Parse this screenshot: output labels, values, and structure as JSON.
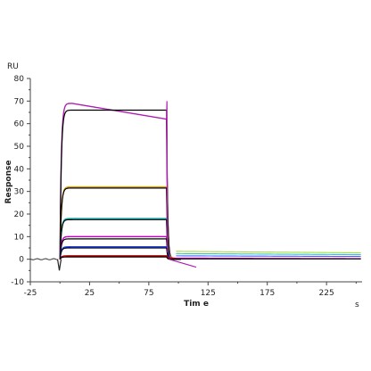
{
  "chart_data": {
    "type": "line",
    "title": "",
    "xlabel": "Tim e",
    "ylabel": "Response",
    "y_unit": "RU",
    "x_unit": "s",
    "xlim": [
      -25,
      255
    ],
    "ylim": [
      -10,
      80
    ],
    "x_ticks": [
      -25,
      25,
      75,
      125,
      175,
      225
    ],
    "y_ticks": [
      -10,
      0,
      10,
      20,
      30,
      40,
      50,
      60,
      70,
      80
    ],
    "grid": false,
    "legend": "none",
    "association_start_s": 0,
    "dissociation_start_s": 90,
    "series": [
      {
        "plateau": 69.0,
        "end_assoc": 62.0,
        "color": "#b020b0",
        "fit": false
      },
      {
        "plateau": 66.0,
        "end_assoc": 66.0,
        "color": "#000000",
        "fit": true
      },
      {
        "plateau": 32.0,
        "end_assoc": 32.0,
        "color": "#e0a000",
        "fit": false
      },
      {
        "plateau": 31.5,
        "end_assoc": 31.5,
        "color": "#000000",
        "fit": true
      },
      {
        "plateau": 18.0,
        "end_assoc": 18.0,
        "color": "#00a0a0",
        "fit": false
      },
      {
        "plateau": 17.5,
        "end_assoc": 17.5,
        "color": "#000000",
        "fit": true
      },
      {
        "plateau": 10.0,
        "end_assoc": 10.0,
        "color": "#c000c0",
        "fit": false
      },
      {
        "plateau": 9.0,
        "end_assoc": 9.0,
        "color": "#000000",
        "fit": true
      },
      {
        "plateau": 5.5,
        "end_assoc": 5.5,
        "color": "#2040ff",
        "fit": false
      },
      {
        "plateau": 5.0,
        "end_assoc": 5.0,
        "color": "#000000",
        "fit": true
      },
      {
        "plateau": 1.5,
        "end_assoc": 1.5,
        "color": "#c00000",
        "fit": false
      },
      {
        "plateau": 1.0,
        "end_assoc": 1.0,
        "color": "#000000",
        "fit": true
      }
    ],
    "tail_levels": [
      {
        "start": 3.5,
        "end": 2.8,
        "color": "#a0e040"
      },
      {
        "start": 2.5,
        "end": 2.0,
        "color": "#40c0c0"
      },
      {
        "start": 1.5,
        "end": 1.2,
        "color": "#4060ff"
      },
      {
        "start": 0.5,
        "end": 0.3,
        "color": "#c000c0"
      }
    ]
  }
}
